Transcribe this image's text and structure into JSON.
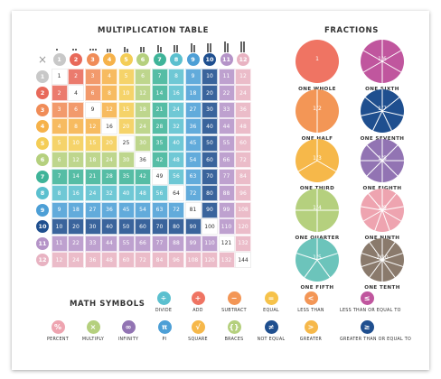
{
  "titles": {
    "table": "MULTIPLICATION TABLE",
    "fractions": "FRACTIONS",
    "symbols": "MATH SYMBOLS"
  },
  "corner_symbol": "×",
  "numbers": [
    1,
    2,
    3,
    4,
    5,
    6,
    7,
    8,
    9,
    10,
    11,
    12
  ],
  "colors": [
    "#c8c8c8",
    "#e8695a",
    "#f08c58",
    "#f6b24a",
    "#f4cd56",
    "#b5d07e",
    "#3fb499",
    "#5bc0cf",
    "#4d9fd6",
    "#1f4f8f",
    "#b594c8",
    "#e8b3c2"
  ],
  "fractions": [
    {
      "label": "ONE WHOLE",
      "slices": 1,
      "color": "#ef7463",
      "text": "1"
    },
    {
      "label": "ONE SIXTH",
      "slices": 6,
      "color": "#c0569e",
      "text": "1/6"
    },
    {
      "label": "ONE HALF",
      "slices": 2,
      "color": "#f39656",
      "text": "1/2"
    },
    {
      "label": "ONE SEVENTH",
      "slices": 7,
      "color": "#1f4f8f",
      "text": "1/7"
    },
    {
      "label": "ONE THIRD",
      "slices": 3,
      "color": "#f6b84a",
      "text": "1/3"
    },
    {
      "label": "ONE EIGHTH",
      "slices": 8,
      "color": "#9274b3",
      "text": "1/8"
    },
    {
      "label": "ONE QUARTER",
      "slices": 4,
      "color": "#b5d07e",
      "text": "1/4"
    },
    {
      "label": "ONE NINTH",
      "slices": 9,
      "color": "#eea4b0",
      "text": "1/9"
    },
    {
      "label": "ONE FIFTH",
      "slices": 5,
      "color": "#6cc4bb",
      "text": "1/5"
    },
    {
      "label": "ONE TENTH",
      "slices": 10,
      "color": "#8a7a6c",
      "text": "1/10"
    }
  ],
  "symbols_row1": [
    {
      "label": "DIVIDE",
      "glyph": "÷",
      "color": "#5bc0cf"
    },
    {
      "label": "ADD",
      "glyph": "+",
      "color": "#ef7463"
    },
    {
      "label": "SUBTRACT",
      "glyph": "−",
      "color": "#f39656"
    },
    {
      "label": "EQUAL",
      "glyph": "=",
      "color": "#f6c24a"
    },
    {
      "label": "LESS THAN",
      "glyph": "<",
      "color": "#f39656"
    },
    {
      "label": "LESS THAN OR EQUAL TO",
      "glyph": "≤",
      "color": "#c0569e"
    }
  ],
  "symbols_row2": [
    {
      "label": "PERCENT",
      "glyph": "%",
      "color": "#eea4b0"
    },
    {
      "label": "MULTIPLY",
      "glyph": "×",
      "color": "#b5d07e"
    },
    {
      "label": "INFINITY",
      "glyph": "∞",
      "color": "#9274b3"
    },
    {
      "label": "PI",
      "glyph": "π",
      "color": "#4d9fd6"
    },
    {
      "label": "SQUARE",
      "glyph": "√",
      "color": "#f6b84a"
    },
    {
      "label": "BRACES",
      "glyph": "{}",
      "color": "#b5d07e"
    },
    {
      "label": "NOT EQUAL",
      "glyph": "≠",
      "color": "#1f4f8f"
    },
    {
      "label": "GREATER",
      "glyph": ">",
      "color": "#f6b84a"
    },
    {
      "label": "GREATER THAN OR EQUAL TO",
      "glyph": "≥",
      "color": "#1f4f8f"
    }
  ]
}
